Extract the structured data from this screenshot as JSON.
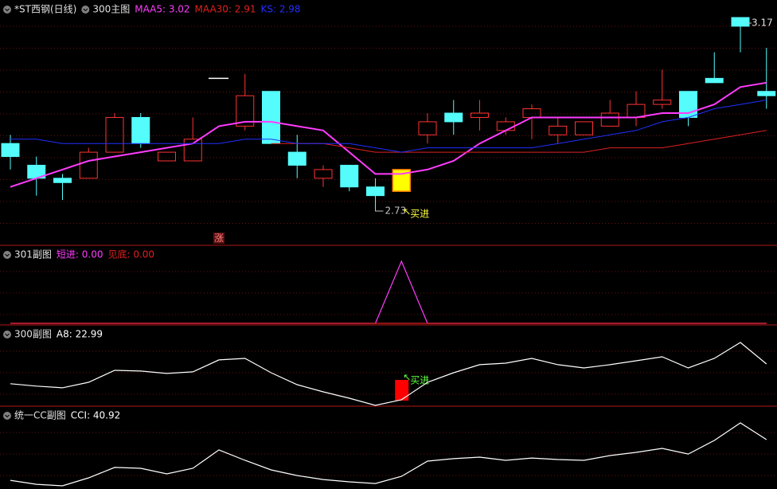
{
  "chart_data": [
    {
      "type": "candlestick",
      "title": "*ST西钢(日线)",
      "subtitle": "300主图",
      "up_color": "#ff3232",
      "down_color": "#54fcfc",
      "flat_color": "#ffffff",
      "open": [
        2.88,
        2.83,
        2.8,
        2.8,
        2.86,
        2.94,
        2.84,
        2.84,
        3.03,
        2.92,
        3.0,
        2.86,
        2.8,
        2.83,
        2.78,
        2.77,
        2.9,
        2.95,
        2.94,
        2.91,
        2.94,
        2.9,
        2.9,
        2.92,
        2.94,
        2.97,
        3.0,
        3.03,
        3.17,
        3.0
      ],
      "high": [
        2.9,
        2.85,
        2.81,
        2.87,
        2.95,
        2.95,
        2.86,
        2.94,
        3.03,
        3.04,
        3.0,
        2.9,
        2.83,
        2.83,
        2.8,
        2.82,
        2.95,
        2.98,
        2.98,
        2.94,
        2.97,
        2.94,
        2.93,
        2.98,
        3.0,
        3.05,
        3.0,
        3.09,
        3.17,
        3.1
      ],
      "low": [
        2.82,
        2.76,
        2.75,
        2.8,
        2.86,
        2.87,
        2.84,
        2.84,
        3.03,
        2.91,
        2.88,
        2.8,
        2.78,
        2.77,
        2.73,
        2.77,
        2.88,
        2.9,
        2.91,
        2.9,
        2.89,
        2.88,
        2.9,
        2.92,
        2.92,
        2.96,
        2.92,
        3.02,
        3.09,
        2.96
      ],
      "close": [
        2.85,
        2.8,
        2.79,
        2.86,
        2.94,
        2.88,
        2.86,
        2.89,
        3.03,
        2.99,
        2.88,
        2.83,
        2.82,
        2.78,
        2.76,
        2.82,
        2.93,
        2.93,
        2.95,
        2.93,
        2.96,
        2.92,
        2.93,
        2.95,
        2.97,
        2.98,
        2.94,
        3.02,
        3.15,
        2.99
      ],
      "series": [
        {
          "label": "MAA5: 3.02",
          "color": "#ff3cff",
          "width": 2,
          "values": [
            2.78,
            2.8,
            2.82,
            2.84,
            2.85,
            2.86,
            2.87,
            2.88,
            2.92,
            2.93,
            2.93,
            2.92,
            2.91,
            2.86,
            2.81,
            2.81,
            2.82,
            2.84,
            2.88,
            2.91,
            2.94,
            2.94,
            2.94,
            2.94,
            2.94,
            2.95,
            2.95,
            2.97,
            3.01,
            3.02
          ]
        },
        {
          "label": "MAA30: 2.91",
          "color": "#e02020",
          "width": 1,
          "values": [
            null,
            null,
            null,
            null,
            null,
            null,
            null,
            null,
            null,
            null,
            2.88,
            2.88,
            2.88,
            2.87,
            2.86,
            2.86,
            2.86,
            2.86,
            2.86,
            2.86,
            2.86,
            2.86,
            2.86,
            2.87,
            2.87,
            2.87,
            2.88,
            2.89,
            2.9,
            2.91
          ]
        },
        {
          "label": "KS: 2.98",
          "color": "#2030ff",
          "width": 1,
          "values": [
            2.89,
            2.89,
            2.88,
            2.88,
            2.88,
            2.88,
            2.88,
            2.88,
            2.88,
            2.89,
            2.89,
            2.88,
            2.88,
            2.88,
            2.87,
            2.86,
            2.87,
            2.87,
            2.87,
            2.87,
            2.87,
            2.88,
            2.89,
            2.9,
            2.91,
            2.93,
            2.94,
            2.96,
            2.97,
            2.98
          ]
        }
      ],
      "min_label": 2.73,
      "max_label": 3.17,
      "buy_signal": {
        "label": "买进",
        "index": 15,
        "color": "#ffff00",
        "label_color": "#ffff40"
      },
      "limit_marker": {
        "label": "涨",
        "index": 8
      }
    },
    {
      "type": "line",
      "title": "301副图",
      "series": [
        {
          "label": "短进: 0.00",
          "color": "#ff3cff",
          "values": [
            0,
            0,
            0,
            0,
            0,
            0,
            0,
            0,
            0,
            0,
            0,
            0,
            0,
            0,
            0,
            1,
            0,
            0,
            0,
            0,
            0,
            0,
            0,
            0,
            0,
            0,
            0,
            0,
            0,
            0
          ]
        },
        {
          "label": "见底: 0.00",
          "color": "#e02020",
          "values": [
            0,
            0,
            0,
            0,
            0,
            0,
            0,
            0,
            0,
            0,
            0,
            0,
            0,
            0,
            0,
            0,
            0,
            0,
            0,
            0,
            0,
            0,
            0,
            0,
            0,
            0,
            0,
            0,
            0,
            0
          ]
        }
      ]
    },
    {
      "type": "line",
      "title": "300副图",
      "series": [
        {
          "label": "A8: 22.99",
          "color": "#ffffff",
          "values": [
            12.2,
            10.9,
            10.0,
            13.0,
            19.5,
            19.1,
            17.8,
            18.7,
            25.2,
            26.0,
            18.2,
            11.7,
            7.8,
            4.3,
            0.4,
            3.5,
            13.0,
            18.2,
            22.6,
            23.4,
            26.0,
            22.6,
            20.8,
            22.6,
            24.7,
            26.9,
            20.8,
            26.0,
            34.7,
            22.99
          ]
        }
      ],
      "buy_signal": {
        "label": "买进",
        "index": 15,
        "color": "#ff0000",
        "label_color": "#60ff40"
      }
    },
    {
      "type": "line",
      "title": "统一CC副图",
      "series": [
        {
          "label": "CCI: 40.92",
          "color": "#ffffff",
          "values": [
            6.1,
            2.7,
            1.4,
            8.2,
            17.1,
            16.4,
            11.6,
            16.4,
            32.1,
            23.2,
            15.0,
            10.2,
            6.8,
            4.8,
            3.4,
            9.5,
            22.5,
            24.6,
            25.9,
            23.2,
            25.2,
            23.9,
            23.2,
            27.3,
            30.0,
            33.4,
            28.6,
            40.2,
            55.2,
            40.92
          ]
        }
      ]
    }
  ]
}
